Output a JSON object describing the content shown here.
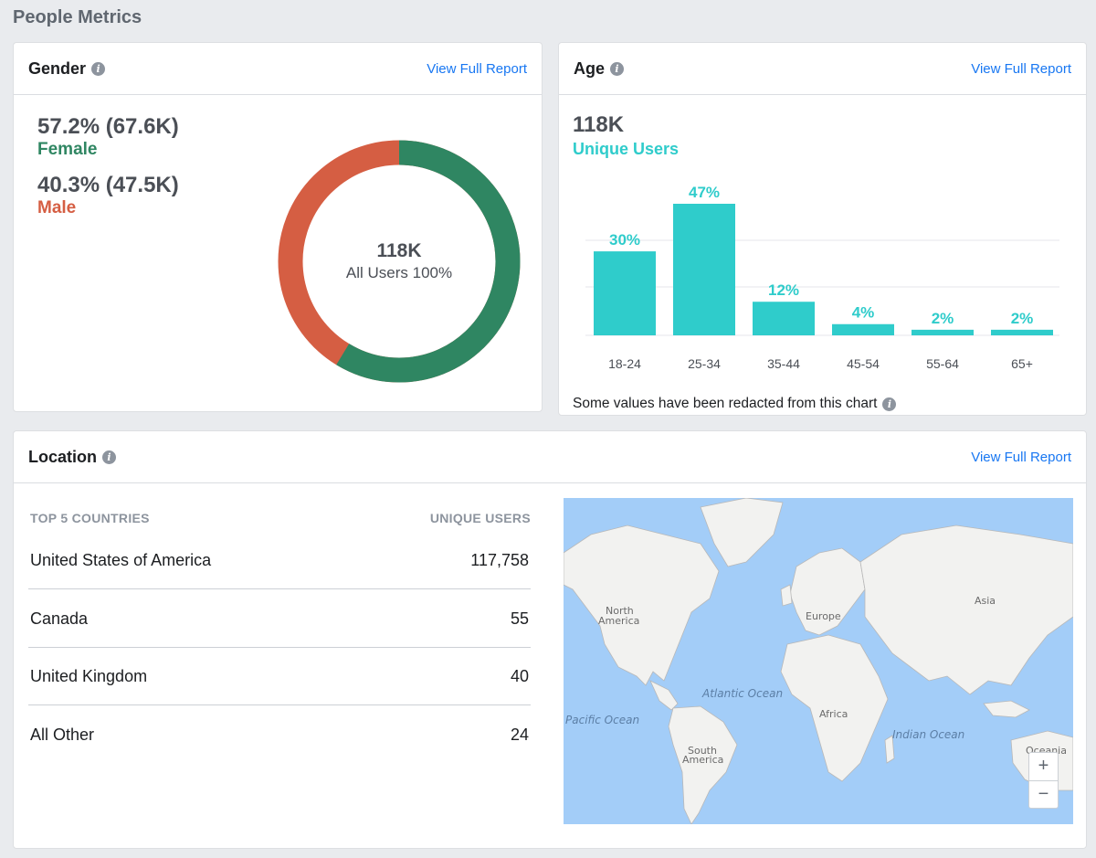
{
  "page": {
    "title": "People Metrics"
  },
  "gender": {
    "title": "Gender",
    "link": "View Full Report",
    "female": {
      "value": "57.2% (67.6K)",
      "label": "Female",
      "percent": 57.2,
      "color": "#2f8662"
    },
    "male": {
      "value": "40.3% (47.5K)",
      "label": "Male",
      "percent": 40.3,
      "color": "#d55e43"
    },
    "center_value": "118K",
    "center_label": "All Users 100%"
  },
  "age": {
    "title": "Age",
    "link": "View Full Report",
    "total": "118K",
    "subtitle": "Unique Users",
    "note": "Some values have been redacted from this chart",
    "color": "#2fcccb"
  },
  "chart_data": {
    "type": "bar",
    "categories": [
      "18-24",
      "25-34",
      "35-44",
      "45-54",
      "55-64",
      "65+"
    ],
    "values": [
      30,
      47,
      12,
      4,
      2,
      2
    ],
    "labels": [
      "30%",
      "47%",
      "12%",
      "4%",
      "2%",
      "2%"
    ],
    "grid": true
  },
  "location": {
    "title": "Location",
    "link": "View Full Report",
    "col_left": "TOP 5 COUNTRIES",
    "col_right": "UNIQUE USERS",
    "rows": [
      {
        "name": "United States of America",
        "value": "117,758"
      },
      {
        "name": "Canada",
        "value": "55"
      },
      {
        "name": "United Kingdom",
        "value": "40"
      },
      {
        "name": "All Other",
        "value": "24"
      }
    ],
    "map_labels": {
      "na1": "North",
      "na2": "America",
      "europe": "Europe",
      "asia": "Asia",
      "africa": "Africa",
      "atlantic": "Atlantic Ocean",
      "pacific": "Pacific Ocean",
      "indian": "Indian Ocean",
      "sa1": "South",
      "sa2": "America",
      "oceania": "Oceania"
    },
    "zoom_in": "+",
    "zoom_out": "−"
  }
}
